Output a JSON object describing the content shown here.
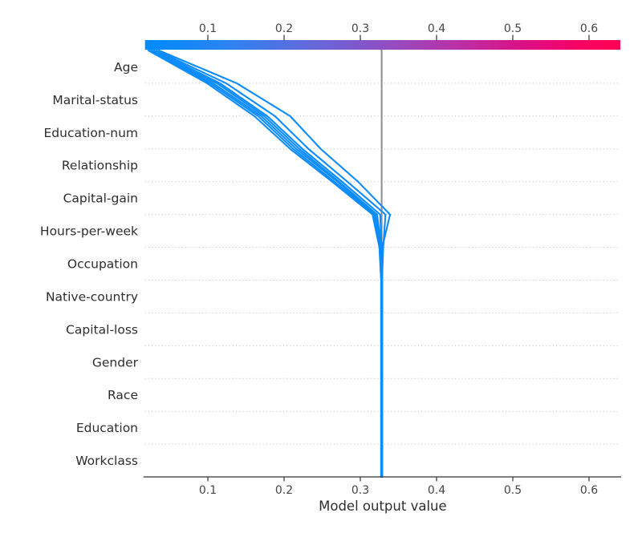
{
  "chart_data": {
    "type": "line",
    "subtype": "shap-decision-plot",
    "title": "",
    "xlabel": "Model output value",
    "x_ticks": [
      0.1,
      0.2,
      0.3,
      0.4,
      0.5,
      0.6
    ],
    "x_tick_labels": [
      "0.1",
      "0.2",
      "0.3",
      "0.4",
      "0.5",
      "0.6"
    ],
    "xlim": [
      0.0176,
      0.641
    ],
    "base_value": 0.328,
    "grid": "horizontal-dotted",
    "legend_position": "none",
    "features_top_to_bottom": [
      "Age",
      "Marital-status",
      "Education-num",
      "Relationship",
      "Capital-gain",
      "Hours-per-week",
      "Occupation",
      "Native-country",
      "Capital-loss",
      "Gender",
      "Race",
      "Education",
      "Workclass"
    ],
    "colorbar": {
      "position": "top",
      "tick_labels": [
        "0.1",
        "0.2",
        "0.3",
        "0.4",
        "0.5",
        "0.6"
      ],
      "gradient_stops": [
        {
          "offset": 0.0,
          "color": "#008bfb"
        },
        {
          "offset": 0.18,
          "color": "#2d82f2"
        },
        {
          "offset": 0.35,
          "color": "#6468d9"
        },
        {
          "offset": 0.5,
          "color": "#8f4fc5"
        },
        {
          "offset": 0.65,
          "color": "#b832a8"
        },
        {
          "offset": 0.8,
          "color": "#dd0f84"
        },
        {
          "offset": 0.92,
          "color": "#f70263"
        },
        {
          "offset": 1.0,
          "color": "#ff0051"
        }
      ]
    },
    "observations": [
      {
        "id": "obs-1",
        "values_bottom_to_top": [
          0.3272,
          0.3272,
          0.3272,
          0.3272,
          0.3272,
          0.3272,
          0.3272,
          0.325,
          0.316,
          0.263,
          0.208,
          0.161,
          0.099,
          0.022
        ]
      },
      {
        "id": "obs-2",
        "values_bottom_to_top": [
          0.3275,
          0.3275,
          0.3275,
          0.3275,
          0.3275,
          0.3275,
          0.3275,
          0.3268,
          0.318,
          0.266,
          0.212,
          0.166,
          0.103,
          0.024
        ]
      },
      {
        "id": "obs-3",
        "values_bottom_to_top": [
          0.3277,
          0.3277,
          0.3277,
          0.3277,
          0.3277,
          0.3277,
          0.3277,
          0.326,
          0.32,
          0.27,
          0.216,
          0.17,
          0.107,
          0.026
        ]
      },
      {
        "id": "obs-4",
        "values_bottom_to_top": [
          0.328,
          0.328,
          0.328,
          0.328,
          0.328,
          0.328,
          0.328,
          0.3275,
          0.322,
          0.272,
          0.22,
          0.174,
          0.112,
          0.028
        ]
      },
      {
        "id": "obs-5",
        "values_bottom_to_top": [
          0.3283,
          0.3283,
          0.3283,
          0.3283,
          0.3283,
          0.3283,
          0.3283,
          0.328,
          0.326,
          0.276,
          0.224,
          0.178,
          0.116,
          0.03
        ]
      },
      {
        "id": "obs-6",
        "values_bottom_to_top": [
          0.3285,
          0.3285,
          0.3285,
          0.3285,
          0.3285,
          0.3285,
          0.3285,
          0.33,
          0.333,
          0.283,
          0.232,
          0.188,
          0.124,
          0.033
        ]
      },
      {
        "id": "obs-7",
        "values_bottom_to_top": [
          0.3288,
          0.3288,
          0.3288,
          0.3288,
          0.3288,
          0.3288,
          0.3288,
          0.3288,
          0.339,
          0.297,
          0.248,
          0.208,
          0.138,
          0.036
        ]
      }
    ],
    "style": {
      "line_color": "#0d8cfb",
      "base_line_color": "#8c8c8c",
      "grid_color": "#b9b9b9",
      "axis_color": "#333333",
      "feature_label_color": "#2e2e2e",
      "tick_label_color": "#454545"
    }
  }
}
